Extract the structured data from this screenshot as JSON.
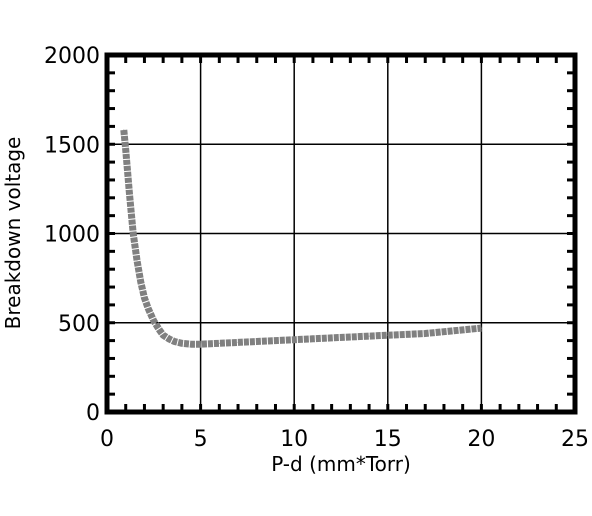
{
  "chart_data": {
    "type": "line",
    "title": "",
    "xlabel": "P-d (mm*Torr)",
    "ylabel": "Breakdown voltage",
    "xlim": [
      0,
      25
    ],
    "ylim": [
      0,
      2000
    ],
    "x_ticks": [
      0,
      5,
      10,
      15,
      20,
      25
    ],
    "y_ticks": [
      0,
      500,
      1000,
      1500,
      2000
    ],
    "x_tick_labels": [
      "0",
      "5",
      "10",
      "15",
      "20",
      "25"
    ],
    "y_tick_labels": [
      "0",
      "500",
      "1000",
      "1500",
      "2000"
    ],
    "grid": true,
    "legend": "none",
    "series": [
      {
        "color": "#808080",
        "x": [
          0.9,
          1.0,
          1.2,
          1.4,
          1.6,
          1.8,
          2.0,
          2.2,
          2.5,
          2.8,
          3.0,
          3.3,
          3.6,
          4.0,
          4.5,
          5.0,
          6.0,
          7.0,
          8.0,
          9.0,
          10.0,
          11.0,
          12.0,
          13.0,
          14.0,
          15.0,
          16.0,
          17.0,
          18.0,
          19.0,
          20.0
        ],
        "y": [
          1580,
          1470,
          1220,
          1000,
          850,
          730,
          640,
          580,
          510,
          460,
          430,
          410,
          395,
          385,
          380,
          380,
          385,
          390,
          395,
          400,
          405,
          410,
          415,
          420,
          425,
          430,
          435,
          440,
          450,
          460,
          470
        ]
      }
    ]
  }
}
